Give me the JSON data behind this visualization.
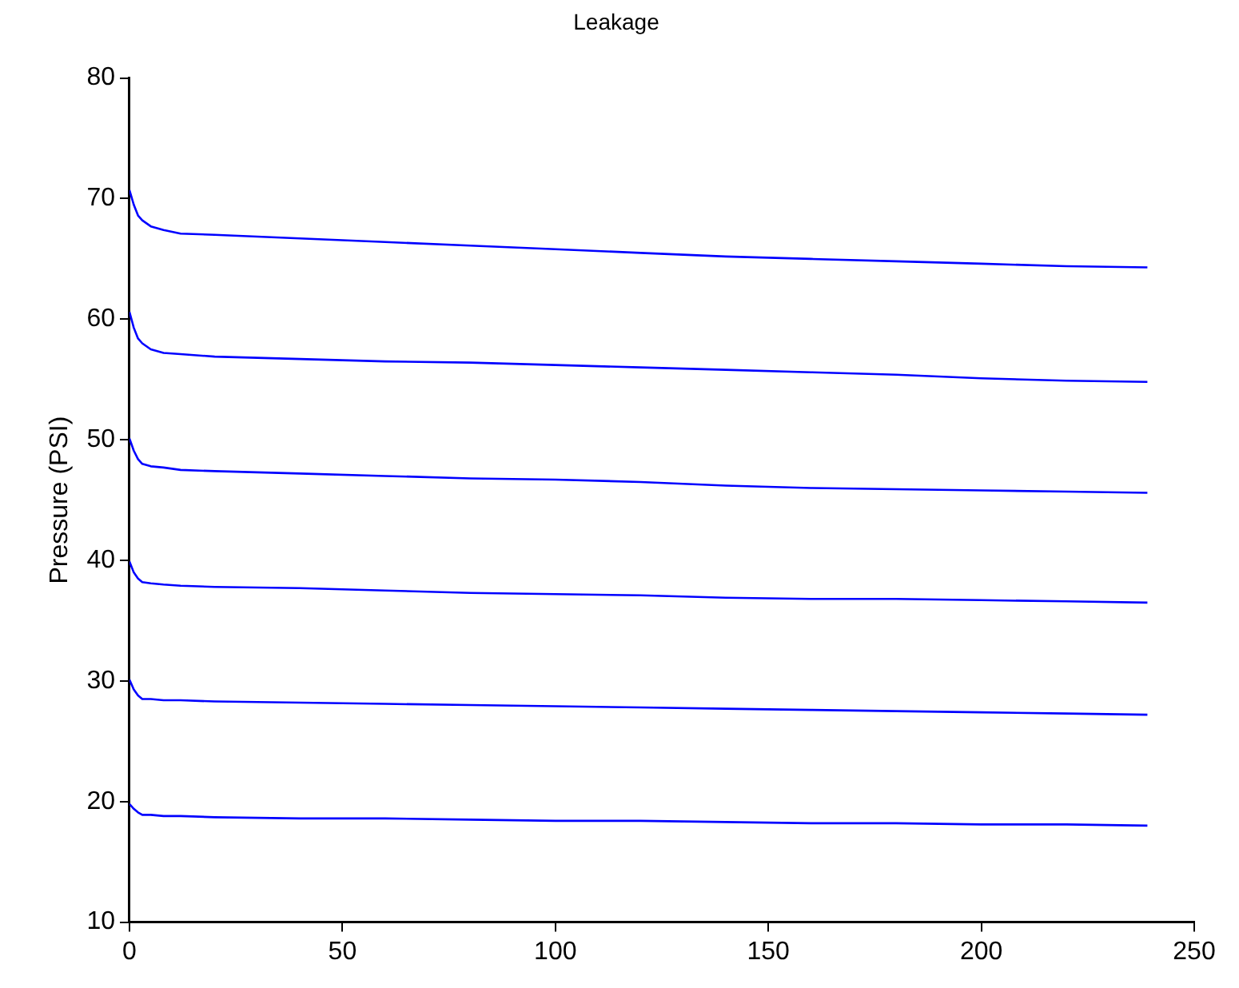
{
  "chart_data": {
    "type": "line",
    "title": "Leakage",
    "ylabel": "Pressure (PSI)",
    "x": [
      0,
      1,
      2,
      3,
      5,
      8,
      12,
      20,
      40,
      60,
      80,
      100,
      120,
      140,
      160,
      180,
      200,
      220,
      239
    ],
    "series": [
      {
        "color": "#0000ff",
        "values": [
          70.7,
          69.5,
          68.6,
          68.2,
          67.7,
          67.4,
          67.1,
          67.0,
          66.7,
          66.4,
          66.1,
          65.8,
          65.5,
          65.2,
          65.0,
          64.8,
          64.6,
          64.4,
          64.3
        ]
      },
      {
        "color": "#0000ff",
        "values": [
          60.6,
          59.3,
          58.4,
          58.0,
          57.5,
          57.2,
          57.1,
          56.9,
          56.7,
          56.5,
          56.4,
          56.2,
          56.0,
          55.8,
          55.6,
          55.4,
          55.1,
          54.9,
          54.8
        ]
      },
      {
        "color": "#0000ff",
        "values": [
          50.1,
          49.1,
          48.4,
          48.0,
          47.8,
          47.7,
          47.5,
          47.4,
          47.2,
          47.0,
          46.8,
          46.7,
          46.5,
          46.2,
          46.0,
          45.9,
          45.8,
          45.7,
          45.6
        ]
      },
      {
        "color": "#0000ff",
        "values": [
          39.9,
          39.0,
          38.5,
          38.2,
          38.1,
          38.0,
          37.9,
          37.8,
          37.7,
          37.5,
          37.3,
          37.2,
          37.1,
          36.9,
          36.8,
          36.8,
          36.7,
          36.6,
          36.5
        ]
      },
      {
        "color": "#0000ff",
        "values": [
          30.1,
          29.3,
          28.8,
          28.5,
          28.5,
          28.4,
          28.4,
          28.3,
          28.2,
          28.1,
          28.0,
          27.9,
          27.8,
          27.7,
          27.6,
          27.5,
          27.4,
          27.3,
          27.2
        ]
      },
      {
        "color": "#0000ff",
        "values": [
          19.8,
          19.4,
          19.1,
          18.9,
          18.9,
          18.8,
          18.8,
          18.7,
          18.6,
          18.6,
          18.5,
          18.4,
          18.4,
          18.3,
          18.2,
          18.2,
          18.1,
          18.1,
          18.0
        ]
      }
    ],
    "xlim": [
      0,
      250
    ],
    "xticks": [
      0,
      50,
      100,
      150,
      200,
      250
    ],
    "ylim": [
      10,
      80
    ],
    "yticks": [
      10,
      20,
      30,
      40,
      50,
      60,
      70,
      80
    ],
    "grid": false,
    "legend": false,
    "marker": "none",
    "line_style": "solid"
  }
}
